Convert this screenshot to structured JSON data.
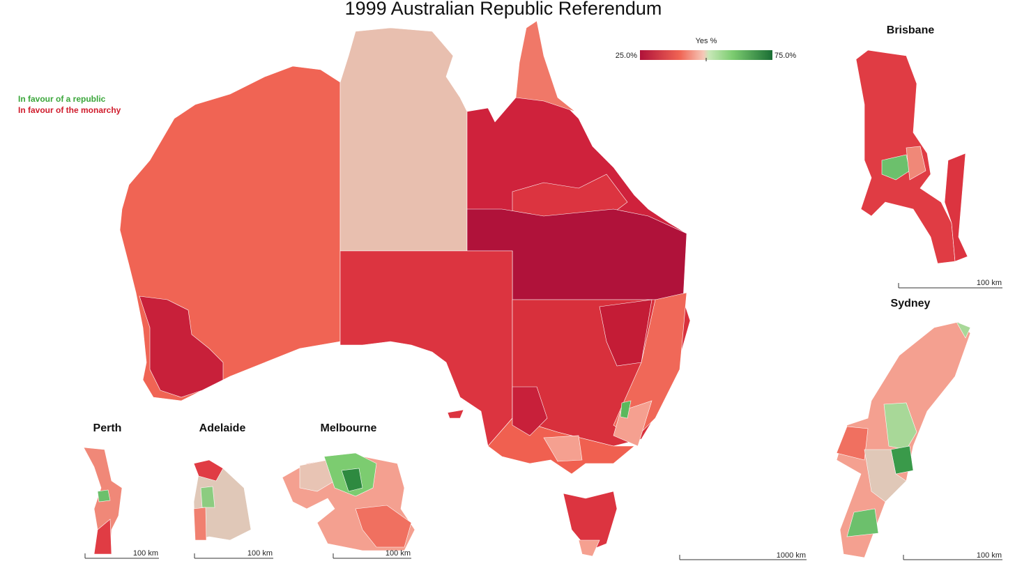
{
  "title": "1999 Australian Republic Referendum",
  "legend": {
    "republic": "In favour of a republic",
    "monarchy": "In favour of the monarchy"
  },
  "colorbar": {
    "title": "Yes %",
    "min_label": "25.0%",
    "max_label": "75.0%"
  },
  "main_scale": "1000 km",
  "insets": [
    {
      "title": "Brisbane",
      "scale": "100 km"
    },
    {
      "title": "Sydney",
      "scale": "100 km"
    },
    {
      "title": "Perth",
      "scale": "100 km"
    },
    {
      "title": "Adelaide",
      "scale": "100 km"
    },
    {
      "title": "Melbourne",
      "scale": "100 km"
    }
  ]
}
